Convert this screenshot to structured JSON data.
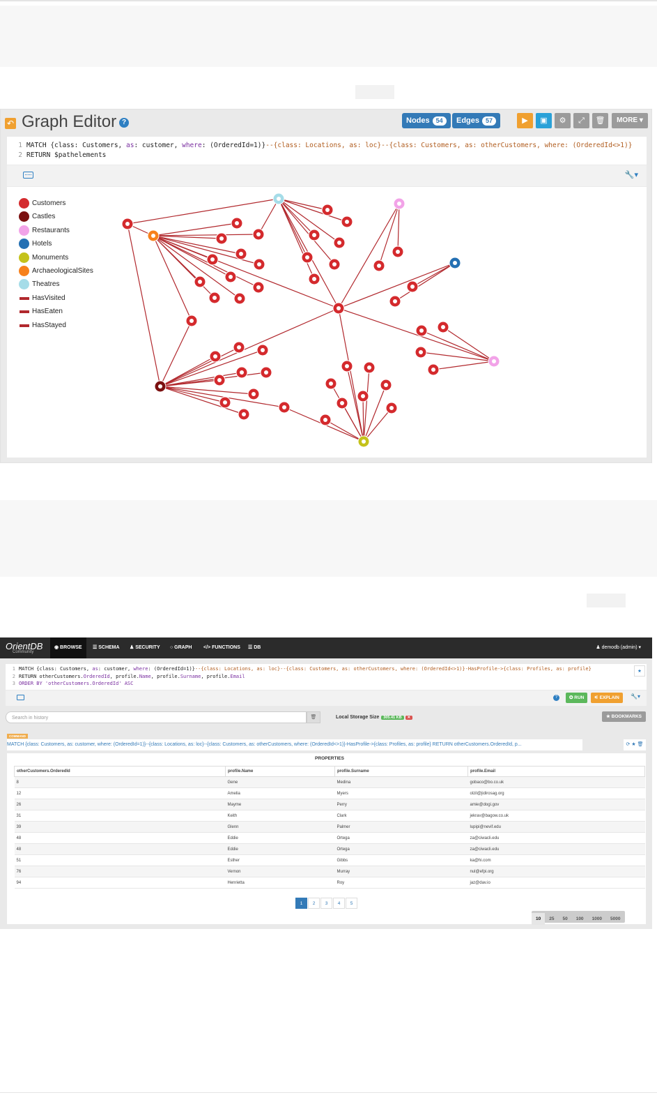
{
  "graph_editor": {
    "title": "Graph Editor",
    "help_glyph": "?",
    "nodes_label": "Nodes",
    "nodes_count": "54",
    "edges_label": "Edges",
    "edges_count": "57",
    "more_label": "MORE ▾",
    "query_lines": [
      "MATCH {class: Customers, as: customer, where: (OrderedId=1)}--{class: Locations, as: loc}--{class: Customers, as: otherCustomers, where: (OrderedId<>1)}",
      "RETURN $pathelements"
    ],
    "legend": [
      {
        "label": "Customers",
        "color": "#d42a2d",
        "kind": "dot"
      },
      {
        "label": "Castles",
        "color": "#7b1010",
        "kind": "dot"
      },
      {
        "label": "Restaurants",
        "color": "#f2a3e8",
        "kind": "dot"
      },
      {
        "label": "Hotels",
        "color": "#2470b3",
        "kind": "dot"
      },
      {
        "label": "Monuments",
        "color": "#c4c21b",
        "kind": "dot"
      },
      {
        "label": "ArchaeologicalSites",
        "color": "#f7811c",
        "kind": "dot"
      },
      {
        "label": "Theatres",
        "color": "#a5dce8",
        "kind": "dot"
      },
      {
        "label": "HasVisited",
        "color": "#b1282d",
        "kind": "line"
      },
      {
        "label": "HasEaten",
        "color": "#b1282d",
        "kind": "line"
      },
      {
        "label": "HasStayed",
        "color": "#b1282d",
        "kind": "line"
      }
    ]
  },
  "browse": {
    "logo": "OrientDB",
    "logo_sub": "Community",
    "nav": [
      "◉ BROWSE",
      "☰ SCHEMA",
      "♟ SECURITY",
      "○ GRAPH",
      "</> FUNCTIONS",
      "☰ DB"
    ],
    "user": "♟ demodb (admin) ▾",
    "query_lines": [
      "MATCH {class: Customers, as: customer, where: (OrderedId=1)}--{class: Locations, as: loc}--{class: Customers, as: otherCustomers, where: (OrderedId<>1)}-HasProfile->{class: Profiles, as: profile}",
      "RETURN otherCustomers.OrderedId, profile.Name, profile.Surname, profile.Email",
      "ORDER BY 'otherCustomers.OrderedId' ASC"
    ],
    "run_label": "✪ RUN",
    "explain_label": "⚟ EXPLAIN",
    "search_placeholder": "Search in history",
    "storage_label": "Local Storage Size",
    "storage_value": "305.41 KB",
    "bookmarks_label": "★ BOOKMARKS",
    "command_badge": "COMMAND",
    "command_text": "MATCH {class: Customers, as: customer, where: (OrderedId=1)}--{class: Locations, as: loc}--{class: Customers, as: otherCustomers, where: (OrderedId<>1)}-HasProfile->{class: Profiles, as: profile} RETURN otherCustomers.OrderedId, p...",
    "properties_label": "PROPERTIES",
    "columns": [
      "otherCustomers.OrderedId",
      "profile.Name",
      "profile.Surname",
      "profile.Email"
    ],
    "rows": [
      [
        "8",
        "Gene",
        "Medina",
        "gobaco@bo.co.uk"
      ],
      [
        "12",
        "Amelia",
        "Myers",
        "olzil@jidirosag.org"
      ],
      [
        "26",
        "Mayme",
        "Perry",
        "amie@dogi.gov"
      ],
      [
        "31",
        "Keith",
        "Clark",
        "jekrav@bagow.co.uk"
      ],
      [
        "39",
        "Glenn",
        "Palmer",
        "lupipi@nevif.edu"
      ],
      [
        "48",
        "Eddie",
        "Ortega",
        "za@ciwacli.edu"
      ],
      [
        "48",
        "Eddie",
        "Ortega",
        "za@ciwacli.edu"
      ],
      [
        "51",
        "Esther",
        "Gibbs",
        "ka@hi.com"
      ],
      [
        "76",
        "Vernon",
        "Murray",
        "nul@efpi.org"
      ],
      [
        "94",
        "Henrietta",
        "Roy",
        "jaz@dav.io"
      ]
    ],
    "pages": [
      "1",
      "2",
      "3",
      "4",
      "5"
    ],
    "page_sizes": [
      "10",
      "25",
      "50",
      "100",
      "1000",
      "5000"
    ]
  }
}
